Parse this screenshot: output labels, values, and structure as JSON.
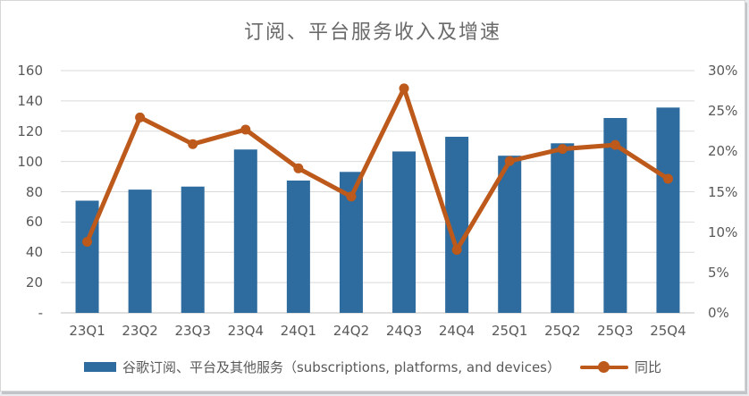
{
  "chart_data": {
    "type": "combo-bar-line",
    "title": "订阅、平台服务收入及增速",
    "categories": [
      "23Q1",
      "23Q2",
      "23Q3",
      "23Q4",
      "24Q1",
      "24Q2",
      "24Q3",
      "24Q4",
      "25Q1",
      "25Q2",
      "25Q3",
      "25Q4"
    ],
    "series": [
      {
        "name": "谷歌订阅、平台及其他服务（subscriptions, platforms, and devices）",
        "type": "bar",
        "axis": "left",
        "values": [
          74.1,
          81.4,
          83.4,
          107.9,
          87.4,
          93.1,
          106.6,
          116.3,
          103.8,
          112.0,
          128.7,
          135.6
        ],
        "color": "#2E6B9E"
      },
      {
        "name": "同比",
        "type": "line",
        "axis": "right",
        "values_percent": [
          8.8,
          24.2,
          20.9,
          22.7,
          17.9,
          14.4,
          27.8,
          7.8,
          18.8,
          20.3,
          20.8,
          16.6
        ],
        "color": "#BC591B"
      }
    ],
    "left_axis": {
      "ticks": [
        "160",
        "140",
        "120",
        "100",
        "80",
        "60",
        "40",
        "20",
        "-"
      ],
      "min": 0,
      "max": 160
    },
    "right_axis": {
      "ticks": [
        "30%",
        "25%",
        "20%",
        "15%",
        "10%",
        "5%",
        "0%"
      ],
      "min_percent": 0,
      "max_percent": 30
    },
    "grid": true,
    "legend_position": "bottom",
    "colors": {
      "gridline": "#D9D9D9",
      "axis_line": "#BFBFBF",
      "tick_text": "#595959",
      "title_text": "#6A6A6A"
    }
  }
}
